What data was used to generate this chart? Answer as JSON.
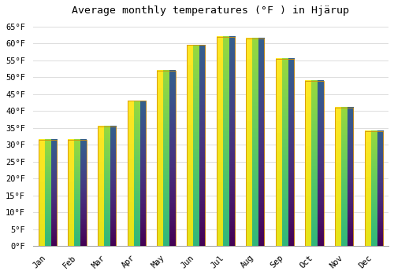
{
  "title": "Average monthly temperatures (°F ) in Hjärup",
  "months": [
    "Jan",
    "Feb",
    "Mar",
    "Apr",
    "May",
    "Jun",
    "Jul",
    "Aug",
    "Sep",
    "Oct",
    "Nov",
    "Dec"
  ],
  "values": [
    31.5,
    31.5,
    35.5,
    43.0,
    52.0,
    59.5,
    62.0,
    61.5,
    55.5,
    49.0,
    41.0,
    34.0
  ],
  "bar_color_top": "#FFD84D",
  "bar_color_bottom": "#F5A800",
  "bar_edge_color": "#D4900A",
  "background_color": "#ffffff",
  "grid_color": "#dddddd",
  "ylim": [
    0,
    67
  ],
  "ytick_step": 5,
  "title_fontsize": 9.5,
  "tick_fontsize": 7.5,
  "font_family": "monospace"
}
